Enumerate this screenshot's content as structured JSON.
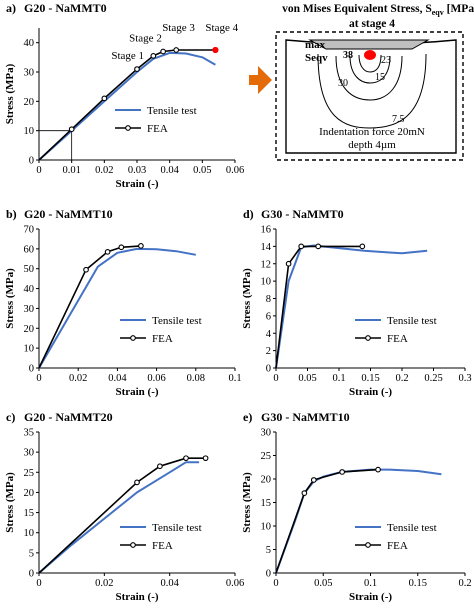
{
  "colors": {
    "tensile": "#4472c4",
    "fea": "#000000",
    "marker_fill": "#ffffff",
    "hotspot": "#ff0000",
    "arrow": "#e36c09",
    "axis": "#000000",
    "indenter": "#bfbfbf"
  },
  "legend_labels": {
    "tensile": "Tensile test",
    "fea": "FEA"
  },
  "chart_data": [
    {
      "id": "a",
      "type": "line",
      "panel_label": "a)",
      "title": "G20 - NaMMT0",
      "xlabel": "Strain (-)",
      "ylabel": "Stress (MPa)",
      "xlim": [
        0,
        0.06
      ],
      "ylim": [
        0,
        45
      ],
      "xticks": [
        0,
        0.01,
        0.02,
        0.03,
        0.04,
        0.05,
        0.06
      ],
      "xtick_labels": [
        "0",
        "0.01",
        "0.02",
        "0.03",
        "0.04",
        "0.05",
        "0.06"
      ],
      "yticks": [
        0,
        10,
        20,
        30,
        40
      ],
      "ytick_labels": [
        "0",
        "10",
        "20",
        "30",
        "40"
      ],
      "series": [
        {
          "name": "Tensile test",
          "kind": "tensile",
          "x": [
            0,
            0.01,
            0.02,
            0.03,
            0.035,
            0.04,
            0.045,
            0.05,
            0.054
          ],
          "y": [
            0,
            10,
            20,
            30,
            34.5,
            36.5,
            36.3,
            35,
            32.5
          ]
        },
        {
          "name": "FEA",
          "kind": "fea",
          "x": [
            0,
            0.01,
            0.02,
            0.03,
            0.035,
            0.038,
            0.042,
            0.054
          ],
          "y": [
            0,
            10.5,
            21,
            31,
            35.5,
            37,
            37.5,
            37.5
          ]
        }
      ],
      "annotations": [
        {
          "text": "Stage 1",
          "x": 0.035,
          "y": 35.5
        },
        {
          "text": "Stage 2",
          "x": 0.038,
          "y": 37
        },
        {
          "text": "Stage 3",
          "x": 0.042,
          "y": 37.5
        },
        {
          "text": "Stage 4",
          "x": 0.054,
          "y": 37.5
        }
      ],
      "guide_point": {
        "x": 0.01,
        "y": 10
      }
    },
    {
      "id": "b",
      "type": "line",
      "panel_label": "b)",
      "title": "G20 - NaMMT10",
      "xlabel": "Strain (-)",
      "ylabel": "Stress (MPa)",
      "xlim": [
        0,
        0.1
      ],
      "ylim": [
        0,
        70
      ],
      "xticks": [
        0,
        0.02,
        0.04,
        0.06,
        0.08,
        0.1
      ],
      "xtick_labels": [
        "0",
        "0.02",
        "0.04",
        "0.06",
        "0.08",
        "0.1"
      ],
      "yticks": [
        0,
        10,
        20,
        30,
        40,
        50,
        60,
        70
      ],
      "ytick_labels": [
        "0",
        "10",
        "20",
        "30",
        "40",
        "50",
        "60",
        "70"
      ],
      "series": [
        {
          "name": "Tensile test",
          "kind": "tensile",
          "x": [
            0,
            0.01,
            0.02,
            0.03,
            0.04,
            0.05,
            0.06,
            0.07,
            0.08
          ],
          "y": [
            0,
            17,
            34,
            51,
            58,
            60,
            59.8,
            58.8,
            57
          ]
        },
        {
          "name": "FEA",
          "kind": "fea",
          "x": [
            0,
            0.024,
            0.035,
            0.042,
            0.052
          ],
          "y": [
            0,
            49.5,
            58.5,
            60.8,
            61.5
          ]
        }
      ]
    },
    {
      "id": "d",
      "type": "line",
      "panel_label": "d)",
      "title": "G30 - NaMMT0",
      "xlabel": "Strain (-)",
      "ylabel": "Stress (MPa)",
      "xlim": [
        0,
        0.3
      ],
      "ylim": [
        0,
        16
      ],
      "xticks": [
        0,
        0.05,
        0.1,
        0.15,
        0.2,
        0.25,
        0.3
      ],
      "xtick_labels": [
        "0",
        "0.05",
        "0.1",
        "0.15",
        "0.2",
        "0.25",
        "0.3"
      ],
      "yticks": [
        0,
        2,
        4,
        6,
        8,
        10,
        12,
        14,
        16
      ],
      "ytick_labels": [
        "0",
        "2",
        "4",
        "6",
        "8",
        "10",
        "12",
        "14",
        "16"
      ],
      "series": [
        {
          "name": "Tensile test",
          "kind": "tensile",
          "x": [
            0,
            0.02,
            0.04,
            0.06,
            0.1,
            0.14,
            0.18,
            0.2,
            0.24
          ],
          "y": [
            0,
            10,
            13.9,
            14.1,
            13.8,
            13.5,
            13.3,
            13.2,
            13.5
          ]
        },
        {
          "name": "FEA",
          "kind": "fea",
          "x": [
            0,
            0.02,
            0.04,
            0.067,
            0.137
          ],
          "y": [
            0,
            12,
            14,
            14,
            14
          ]
        }
      ]
    },
    {
      "id": "c",
      "type": "line",
      "panel_label": "c)",
      "title": "G20 - NaMMT20",
      "xlabel": "Strain (-)",
      "ylabel": "Stress (MPa)",
      "xlim": [
        0,
        0.06
      ],
      "ylim": [
        0,
        35
      ],
      "xticks": [
        0,
        0.02,
        0.04,
        0.06
      ],
      "xtick_labels": [
        "0",
        "0.02",
        "0.04",
        "0.06"
      ],
      "yticks": [
        0,
        5,
        10,
        15,
        20,
        25,
        30,
        35
      ],
      "ytick_labels": [
        "0",
        "5",
        "10",
        "15",
        "20",
        "25",
        "30",
        "35"
      ],
      "series": [
        {
          "name": "Tensile test",
          "kind": "tensile",
          "x": [
            0,
            0.01,
            0.02,
            0.03,
            0.04,
            0.045,
            0.049
          ],
          "y": [
            0,
            7,
            13.5,
            20,
            25,
            27.5,
            27.5
          ]
        },
        {
          "name": "FEA",
          "kind": "fea",
          "x": [
            0,
            0.03,
            0.037,
            0.045,
            0.051
          ],
          "y": [
            0,
            22.5,
            26.5,
            28.5,
            28.5
          ]
        }
      ]
    },
    {
      "id": "e",
      "type": "line",
      "panel_label": "e)",
      "title": "G30 - NaMMT10",
      "xlabel": "Strain (-)",
      "ylabel": "Stress (MPa)",
      "xlim": [
        0,
        0.2
      ],
      "ylim": [
        0,
        30
      ],
      "xticks": [
        0,
        0.05,
        0.1,
        0.15,
        0.2
      ],
      "xtick_labels": [
        "0",
        "0.05",
        "0.1",
        "0.15",
        "0.2"
      ],
      "yticks": [
        0,
        5,
        10,
        15,
        20,
        25,
        30
      ],
      "ytick_labels": [
        "0",
        "5",
        "10",
        "15",
        "20",
        "25",
        "30"
      ],
      "series": [
        {
          "name": "Tensile test",
          "kind": "tensile",
          "x": [
            0,
            0.02,
            0.03,
            0.04,
            0.05,
            0.07,
            0.1,
            0.12,
            0.15,
            0.175
          ],
          "y": [
            0,
            11,
            17,
            19.5,
            20.5,
            21.5,
            22,
            22,
            21.7,
            21
          ]
        },
        {
          "name": "FEA",
          "kind": "fea",
          "x": [
            0,
            0.03,
            0.04,
            0.07,
            0.108
          ],
          "y": [
            0,
            17,
            19.8,
            21.5,
            22
          ]
        }
      ]
    }
  ],
  "inset": {
    "title_line1": "von Mises Equivalent Stress, S",
    "title_sub": "eqv",
    "title_line1_end": " [MPa]",
    "title_line2": "at stage 4",
    "max_label": "max",
    "seqv_label": "Seqv",
    "contour_labels": [
      "38",
      "23",
      "15",
      "30",
      "7.5"
    ],
    "caption_line1": "Indentation force 20mN",
    "caption_line2": "depth 4µm"
  }
}
